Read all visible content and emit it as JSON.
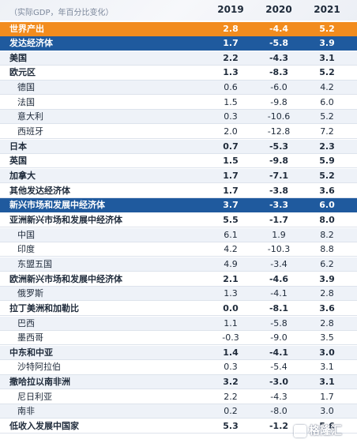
{
  "header": {
    "note": "（实际GDP，年百分比变化）",
    "years": [
      "2019",
      "2020",
      "2021"
    ]
  },
  "rows": [
    {
      "label": "世界产出",
      "v2019": "2.8",
      "v2020": "-4.4",
      "v2021": "5.2",
      "style": "world"
    },
    {
      "label": "发达经济体",
      "v2019": "1.7",
      "v2020": "-5.8",
      "v2021": "3.9",
      "style": "section"
    },
    {
      "label": "美国",
      "v2019": "2.2",
      "v2020": "-4.3",
      "v2021": "3.1",
      "style": "group"
    },
    {
      "label": "欧元区",
      "v2019": "1.3",
      "v2020": "-8.3",
      "v2021": "5.2",
      "style": "group"
    },
    {
      "label": "德国",
      "v2019": "0.6",
      "v2020": "-6.0",
      "v2021": "4.2",
      "style": "indent"
    },
    {
      "label": "法国",
      "v2019": "1.5",
      "v2020": "-9.8",
      "v2021": "6.0",
      "style": "indent"
    },
    {
      "label": "意大利",
      "v2019": "0.3",
      "v2020": "-10.6",
      "v2021": "5.2",
      "style": "indent"
    },
    {
      "label": "西班牙",
      "v2019": "2.0",
      "v2020": "-12.8",
      "v2021": "7.2",
      "style": "indent"
    },
    {
      "label": "日本",
      "v2019": "0.7",
      "v2020": "-5.3",
      "v2021": "2.3",
      "style": "group"
    },
    {
      "label": "英国",
      "v2019": "1.5",
      "v2020": "-9.8",
      "v2021": "5.9",
      "style": "group"
    },
    {
      "label": "加拿大",
      "v2019": "1.7",
      "v2020": "-7.1",
      "v2021": "5.2",
      "style": "group"
    },
    {
      "label": "其他发达经济体",
      "v2019": "1.7",
      "v2020": "-3.8",
      "v2021": "3.6",
      "style": "group"
    },
    {
      "label": "新兴市场和发展中经济体",
      "v2019": "3.7",
      "v2020": "-3.3",
      "v2021": "6.0",
      "style": "section"
    },
    {
      "label": "亚洲新兴市场和发展中经济体",
      "v2019": "5.5",
      "v2020": "-1.7",
      "v2021": "8.0",
      "style": "group"
    },
    {
      "label": "中国",
      "v2019": "6.1",
      "v2020": "1.9",
      "v2021": "8.2",
      "style": "indent"
    },
    {
      "label": "印度",
      "v2019": "4.2",
      "v2020": "-10.3",
      "v2021": "8.8",
      "style": "indent"
    },
    {
      "label": "东盟五国",
      "v2019": "4.9",
      "v2020": "-3.4",
      "v2021": "6.2",
      "style": "indent"
    },
    {
      "label": "欧洲新兴市场和发展中经济体",
      "v2019": "2.1",
      "v2020": "-4.6",
      "v2021": "3.9",
      "style": "group"
    },
    {
      "label": "俄罗斯",
      "v2019": "1.3",
      "v2020": "-4.1",
      "v2021": "2.8",
      "style": "indent"
    },
    {
      "label": "拉丁美洲和加勒比",
      "v2019": "0.0",
      "v2020": "-8.1",
      "v2021": "3.6",
      "style": "group"
    },
    {
      "label": "巴西",
      "v2019": "1.1",
      "v2020": "-5.8",
      "v2021": "2.8",
      "style": "indent"
    },
    {
      "label": "墨西哥",
      "v2019": "-0.3",
      "v2020": "-9.0",
      "v2021": "3.5",
      "style": "indent"
    },
    {
      "label": "中东和中亚",
      "v2019": "1.4",
      "v2020": "-4.1",
      "v2021": "3.0",
      "style": "group"
    },
    {
      "label": "沙特阿拉伯",
      "v2019": "0.3",
      "v2020": "-5.4",
      "v2021": "3.1",
      "style": "indent"
    },
    {
      "label": "撒哈拉以南非洲",
      "v2019": "3.2",
      "v2020": "-3.0",
      "v2021": "3.1",
      "style": "group"
    },
    {
      "label": "尼日利亚",
      "v2019": "2.2",
      "v2020": "-4.3",
      "v2021": "1.7",
      "style": "indent"
    },
    {
      "label": "南非",
      "v2019": "0.2",
      "v2020": "-8.0",
      "v2021": "3.0",
      "style": "indent"
    },
    {
      "label": "低收入发展中国家",
      "v2019": "5.3",
      "v2020": "-1.2",
      "v2021": "5.6",
      "style": "group"
    }
  ],
  "watermark": "格隆汇"
}
